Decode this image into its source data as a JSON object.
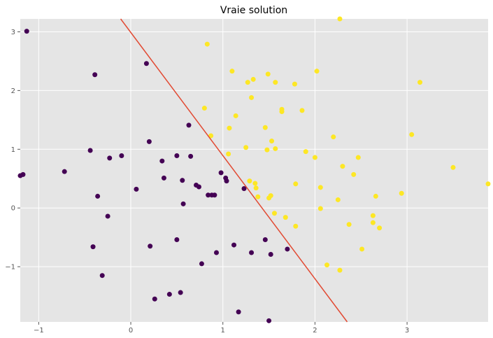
{
  "chart_data": {
    "type": "scatter",
    "title": "Vraie solution",
    "xlabel": "",
    "ylabel": "",
    "xlim": [
      -1.2,
      3.88
    ],
    "ylim": [
      -1.94,
      3.22
    ],
    "xticks": [
      -1,
      0,
      1,
      2,
      3
    ],
    "yticks": [
      -1,
      0,
      1,
      2,
      3
    ],
    "xtick_labels": [
      "−1",
      "0",
      "1",
      "2",
      "3"
    ],
    "ytick_labels": [
      "−1",
      "0",
      "1",
      "2",
      "3"
    ],
    "grid": true,
    "background": "#e5e5e5",
    "grid_color": "#ffffff",
    "boundary_line": {
      "color": "#e24a33",
      "points": [
        [
          -0.11,
          3.22
        ],
        [
          2.35,
          -1.94
        ]
      ]
    },
    "series": [
      {
        "color": "#440154",
        "points": [
          [
            -1.13,
            3.01
          ],
          [
            -0.39,
            2.27
          ],
          [
            0.17,
            2.46
          ],
          [
            -1.17,
            0.57
          ],
          [
            -1.2,
            0.55
          ],
          [
            -0.72,
            0.62
          ],
          [
            -0.44,
            0.98
          ],
          [
            -0.23,
            0.85
          ],
          [
            -0.1,
            0.89
          ],
          [
            0.2,
            1.13
          ],
          [
            0.34,
            0.8
          ],
          [
            0.36,
            0.51
          ],
          [
            0.5,
            0.89
          ],
          [
            0.56,
            0.47
          ],
          [
            0.63,
            1.41
          ],
          [
            0.65,
            0.88
          ],
          [
            0.06,
            0.32
          ],
          [
            -0.36,
            0.2
          ],
          [
            -0.25,
            -0.14
          ],
          [
            0.71,
            0.39
          ],
          [
            0.74,
            0.36
          ],
          [
            0.57,
            0.07
          ],
          [
            0.84,
            0.22
          ],
          [
            0.88,
            0.22
          ],
          [
            0.91,
            0.22
          ],
          [
            0.98,
            0.6
          ],
          [
            1.03,
            0.51
          ],
          [
            1.04,
            0.46
          ],
          [
            1.23,
            0.33
          ],
          [
            -0.41,
            -0.66
          ],
          [
            0.21,
            -0.65
          ],
          [
            0.5,
            -0.54
          ],
          [
            0.93,
            -0.76
          ],
          [
            1.12,
            -0.63
          ],
          [
            1.31,
            -0.76
          ],
          [
            1.46,
            -0.54
          ],
          [
            1.52,
            -0.79
          ],
          [
            1.7,
            -0.7
          ],
          [
            0.77,
            -0.95
          ],
          [
            -0.31,
            -1.15
          ],
          [
            0.26,
            -1.55
          ],
          [
            0.42,
            -1.47
          ],
          [
            0.54,
            -1.44
          ],
          [
            1.17,
            -1.77
          ],
          [
            1.5,
            -1.92
          ]
        ]
      },
      {
        "color": "#fde725",
        "points": [
          [
            0.83,
            2.79
          ],
          [
            1.1,
            2.33
          ],
          [
            1.27,
            2.14
          ],
          [
            1.33,
            2.19
          ],
          [
            1.49,
            2.28
          ],
          [
            1.57,
            2.14
          ],
          [
            1.78,
            2.11
          ],
          [
            2.02,
            2.33
          ],
          [
            2.27,
            3.22
          ],
          [
            3.14,
            2.14
          ],
          [
            1.31,
            1.88
          ],
          [
            0.8,
            1.7
          ],
          [
            1.14,
            1.57
          ],
          [
            1.64,
            1.68
          ],
          [
            1.64,
            1.64
          ],
          [
            1.86,
            1.66
          ],
          [
            0.87,
            1.23
          ],
          [
            1.07,
            1.36
          ],
          [
            1.46,
            1.37
          ],
          [
            1.53,
            1.14
          ],
          [
            2.2,
            1.21
          ],
          [
            3.05,
            1.25
          ],
          [
            1.06,
            0.92
          ],
          [
            1.25,
            1.03
          ],
          [
            1.48,
            0.99
          ],
          [
            1.57,
            1.01
          ],
          [
            1.9,
            0.96
          ],
          [
            2.0,
            0.86
          ],
          [
            2.3,
            0.71
          ],
          [
            2.42,
            0.57
          ],
          [
            2.47,
            0.86
          ],
          [
            3.5,
            0.69
          ],
          [
            3.88,
            0.41
          ],
          [
            1.29,
            0.46
          ],
          [
            1.35,
            0.42
          ],
          [
            1.36,
            0.34
          ],
          [
            1.38,
            0.19
          ],
          [
            1.5,
            0.17
          ],
          [
            1.52,
            0.21
          ],
          [
            1.79,
            0.41
          ],
          [
            2.06,
            0.35
          ],
          [
            2.25,
            0.14
          ],
          [
            2.66,
            0.2
          ],
          [
            2.94,
            0.25
          ],
          [
            2.06,
            -0.01
          ],
          [
            1.56,
            -0.09
          ],
          [
            1.68,
            -0.16
          ],
          [
            1.79,
            -0.31
          ],
          [
            2.37,
            -0.28
          ],
          [
            2.63,
            -0.13
          ],
          [
            2.63,
            -0.25
          ],
          [
            2.7,
            -0.34
          ],
          [
            2.51,
            -0.7
          ],
          [
            2.13,
            -0.97
          ],
          [
            2.27,
            -1.06
          ]
        ]
      }
    ]
  }
}
